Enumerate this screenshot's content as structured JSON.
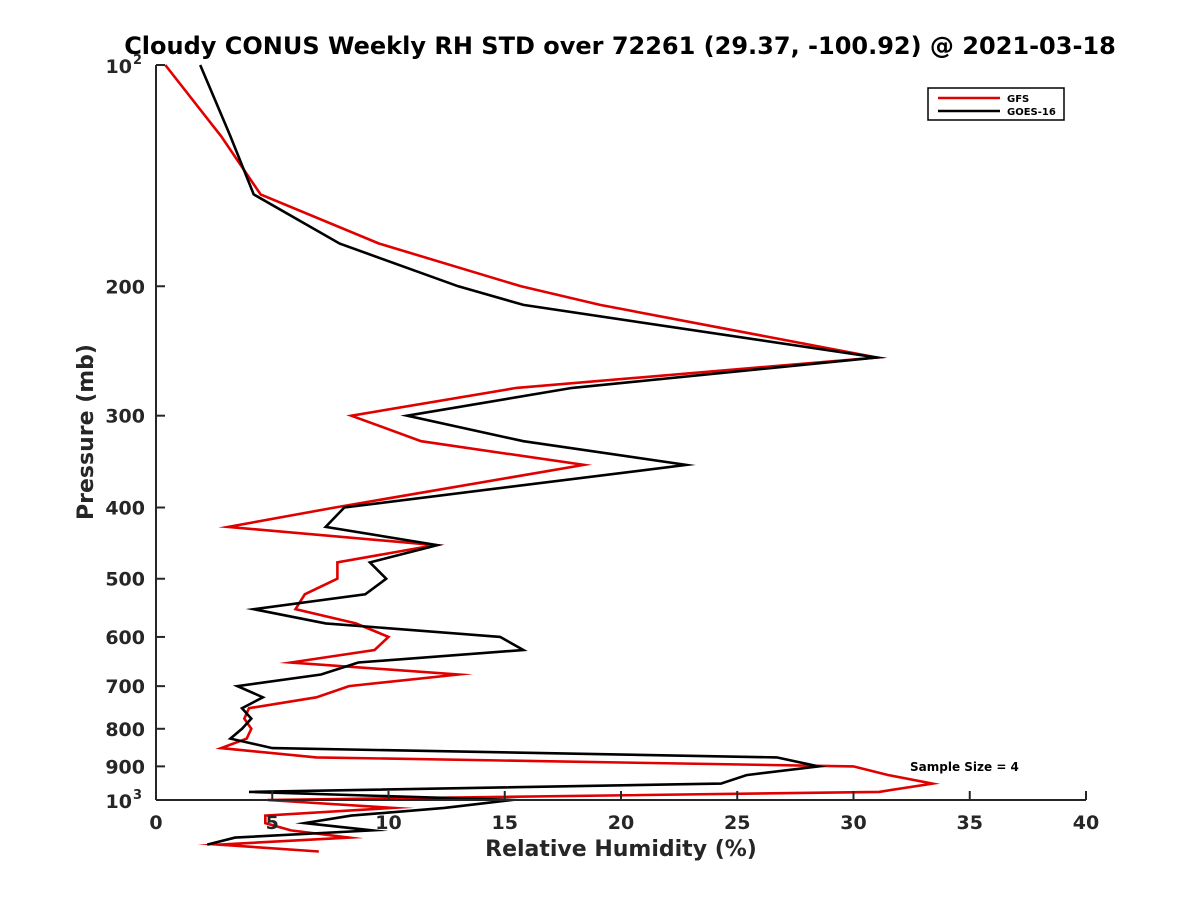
{
  "chart_data": {
    "type": "line",
    "title": "Cloudy CONUS Weekly RH STD over 72261 (29.37, -100.92) @ 2021-03-18",
    "xlabel": "Relative Humidity (%)",
    "ylabel": "Pressure (mb)",
    "xlim": [
      0,
      40
    ],
    "ylim": [
      100,
      1000
    ],
    "y_scale": "log",
    "y_reversed": true,
    "grid": false,
    "legend_position": "top-right",
    "x_ticks": [
      "0",
      "5",
      "10",
      "15",
      "20",
      "25",
      "30",
      "35",
      "40"
    ],
    "y_ticks": [
      {
        "value": 100,
        "base": "10",
        "exp": "2"
      },
      {
        "value": 200,
        "label": "200"
      },
      {
        "value": 300,
        "label": "300"
      },
      {
        "value": 400,
        "label": "400"
      },
      {
        "value": 500,
        "label": "500"
      },
      {
        "value": 600,
        "label": "600"
      },
      {
        "value": 700,
        "label": "700"
      },
      {
        "value": 800,
        "label": "800"
      },
      {
        "value": 900,
        "label": "900"
      },
      {
        "value": 1000,
        "base": "10",
        "exp": "3"
      }
    ],
    "annotation": "Sample Size = 4",
    "series": [
      {
        "name": "GFS",
        "color": "#e00000",
        "points": [
          {
            "x": 0.4,
            "p": 100
          },
          {
            "x": 2.8,
            "p": 125
          },
          {
            "x": 4.5,
            "p": 150
          },
          {
            "x": 9.6,
            "p": 175
          },
          {
            "x": 15.7,
            "p": 200
          },
          {
            "x": 19.1,
            "p": 212
          },
          {
            "x": 31.0,
            "p": 250
          },
          {
            "x": 15.5,
            "p": 275
          },
          {
            "x": 8.4,
            "p": 300
          },
          {
            "x": 11.4,
            "p": 325
          },
          {
            "x": 18.4,
            "p": 350
          },
          {
            "x": 7.7,
            "p": 400
          },
          {
            "x": 3.1,
            "p": 425
          },
          {
            "x": 12.0,
            "p": 450
          },
          {
            "x": 7.8,
            "p": 475
          },
          {
            "x": 7.8,
            "p": 500
          },
          {
            "x": 6.4,
            "p": 525
          },
          {
            "x": 6.0,
            "p": 550
          },
          {
            "x": 8.6,
            "p": 575
          },
          {
            "x": 10.0,
            "p": 600
          },
          {
            "x": 9.4,
            "p": 625
          },
          {
            "x": 5.8,
            "p": 650
          },
          {
            "x": 13.0,
            "p": 675
          },
          {
            "x": 8.3,
            "p": 700
          },
          {
            "x": 6.9,
            "p": 725
          },
          {
            "x": 4.0,
            "p": 750
          },
          {
            "x": 3.8,
            "p": 775
          },
          {
            "x": 4.1,
            "p": 800
          },
          {
            "x": 3.9,
            "p": 825
          },
          {
            "x": 2.8,
            "p": 850
          },
          {
            "x": 6.9,
            "p": 875
          },
          {
            "x": 30.0,
            "p": 900
          },
          {
            "x": 31.5,
            "p": 925
          },
          {
            "x": 33.4,
            "p": 950
          },
          {
            "x": 31.1,
            "p": 975
          },
          {
            "x": 4.8,
            "p": 1000
          },
          {
            "x": 10.2,
            "p": 1025
          },
          {
            "x": 4.7,
            "p": 1050
          },
          {
            "x": 4.7,
            "p": 1075
          },
          {
            "x": 5.8,
            "p": 1100
          },
          {
            "x": 8.3,
            "p": 1125
          },
          {
            "x": 2.7,
            "p": 1150
          },
          {
            "x": 7.0,
            "p": 1175
          }
        ]
      },
      {
        "name": "GOES-16",
        "color": "#000000",
        "points": [
          {
            "x": 1.9,
            "p": 100
          },
          {
            "x": 3.2,
            "p": 125
          },
          {
            "x": 4.2,
            "p": 150
          },
          {
            "x": 7.9,
            "p": 175
          },
          {
            "x": 13.0,
            "p": 200
          },
          {
            "x": 15.8,
            "p": 212
          },
          {
            "x": 31.0,
            "p": 250
          },
          {
            "x": 17.9,
            "p": 275
          },
          {
            "x": 10.8,
            "p": 300
          },
          {
            "x": 15.8,
            "p": 325
          },
          {
            "x": 22.8,
            "p": 350
          },
          {
            "x": 8.1,
            "p": 400
          },
          {
            "x": 7.3,
            "p": 425
          },
          {
            "x": 12.1,
            "p": 450
          },
          {
            "x": 9.2,
            "p": 475
          },
          {
            "x": 9.9,
            "p": 500
          },
          {
            "x": 9.0,
            "p": 525
          },
          {
            "x": 4.2,
            "p": 550
          },
          {
            "x": 7.3,
            "p": 575
          },
          {
            "x": 14.8,
            "p": 600
          },
          {
            "x": 15.8,
            "p": 625
          },
          {
            "x": 8.7,
            "p": 650
          },
          {
            "x": 7.1,
            "p": 675
          },
          {
            "x": 3.5,
            "p": 700
          },
          {
            "x": 4.6,
            "p": 725
          },
          {
            "x": 3.7,
            "p": 750
          },
          {
            "x": 4.1,
            "p": 775
          },
          {
            "x": 3.7,
            "p": 800
          },
          {
            "x": 3.2,
            "p": 825
          },
          {
            "x": 5.0,
            "p": 850
          },
          {
            "x": 26.7,
            "p": 875
          },
          {
            "x": 28.5,
            "p": 900
          },
          {
            "x": 25.4,
            "p": 925
          },
          {
            "x": 24.3,
            "p": 950
          },
          {
            "x": 4.0,
            "p": 975
          },
          {
            "x": 15.3,
            "p": 1000
          },
          {
            "x": 12.4,
            "p": 1025
          },
          {
            "x": 8.4,
            "p": 1050
          },
          {
            "x": 6.4,
            "p": 1075
          },
          {
            "x": 9.3,
            "p": 1100
          },
          {
            "x": 3.4,
            "p": 1125
          },
          {
            "x": 2.2,
            "p": 1150
          }
        ]
      }
    ]
  }
}
